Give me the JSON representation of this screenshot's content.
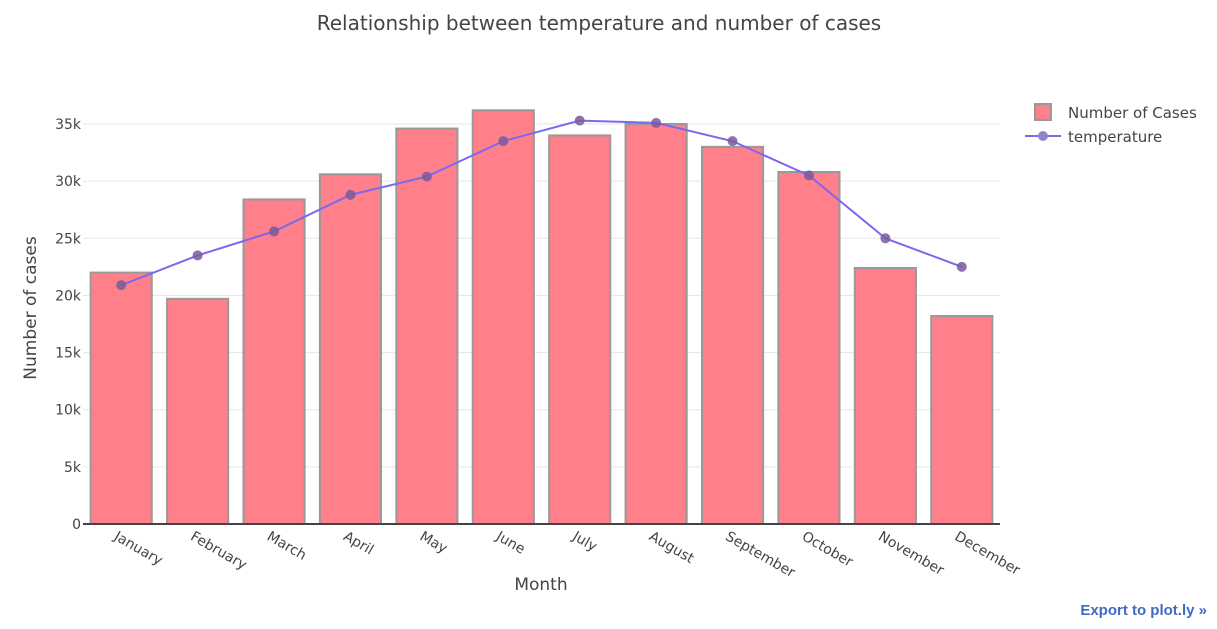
{
  "chart_data": {
    "type": "bar",
    "title": "Relationship between temperature and number of cases",
    "xlabel": "Month",
    "ylabel": "Number of cases",
    "ylim": [
      0,
      38500
    ],
    "yticks": [
      0,
      5000,
      10000,
      15000,
      20000,
      25000,
      30000,
      35000
    ],
    "ytick_labels": [
      "0",
      "5k",
      "10k",
      "15k",
      "20k",
      "25k",
      "30k",
      "35k"
    ],
    "grid": true,
    "legend_position": "top-right",
    "categories": [
      "January",
      "February",
      "March",
      "April",
      "May",
      "June",
      "July",
      "August",
      "September",
      "October",
      "November",
      "December"
    ],
    "series": [
      {
        "name": "Number of Cases",
        "type": "bar",
        "color": "#ff7f8a",
        "values": [
          22000,
          19700,
          28400,
          30600,
          34600,
          36200,
          34000,
          35000,
          33000,
          30800,
          22400,
          18200
        ]
      },
      {
        "name": "temperature",
        "type": "line",
        "color": "#7b68ee",
        "values": [
          20900,
          23500,
          25600,
          28800,
          30400,
          33500,
          35300,
          35100,
          33500,
          30500,
          25000,
          22500
        ]
      }
    ]
  },
  "export_link": "Export to plot.ly »"
}
